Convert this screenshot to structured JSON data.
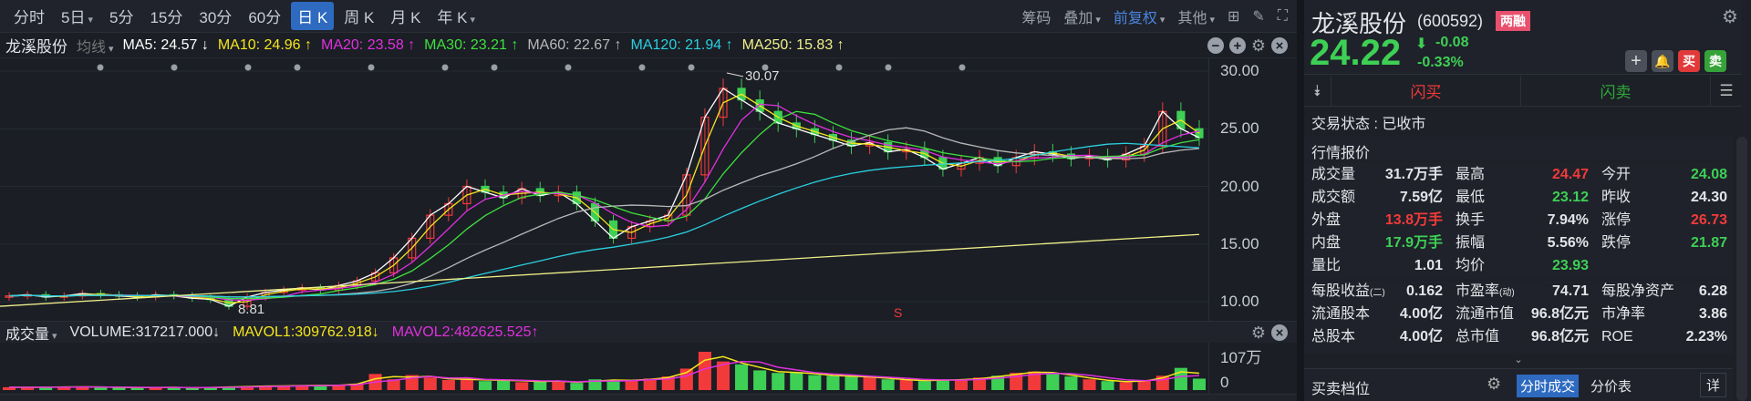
{
  "toolbar": {
    "periods": [
      {
        "label": "分时"
      },
      {
        "label": "5日",
        "dropdown": true
      },
      {
        "label": "5分"
      },
      {
        "label": "15分"
      },
      {
        "label": "30分"
      },
      {
        "label": "60分"
      },
      {
        "label": "日 K",
        "active": true
      },
      {
        "label": "周 K"
      },
      {
        "label": "月 K"
      },
      {
        "label": "年 K",
        "dropdown": true
      }
    ],
    "right": {
      "chips": "筹码",
      "overlay": "叠加",
      "adjust": "前复权",
      "other": "其他"
    }
  },
  "ma_bar": {
    "name": "龙溪股份",
    "type": "均线",
    "items": [
      {
        "label": "MA5: 24.57 ↓",
        "color": "#ffffff"
      },
      {
        "label": "MA10: 24.96 ↑",
        "color": "#f5e61c"
      },
      {
        "label": "MA20: 23.58 ↑",
        "color": "#e030e0"
      },
      {
        "label": "MA30: 23.21 ↑",
        "color": "#3ee03e"
      },
      {
        "label": "MA60: 22.67 ↑",
        "color": "#b8b8b8"
      },
      {
        "label": "MA120: 21.94 ↑",
        "color": "#2ad0e0"
      },
      {
        "label": "MA250: 15.83 ↑",
        "color": "#f0f08a"
      }
    ]
  },
  "volume_bar": {
    "name": "成交量",
    "items": [
      {
        "label": "VOLUME:317217.000↓",
        "color": "#e2e4e8"
      },
      {
        "label": "MAVOL1:309762.918↓",
        "color": "#f5e61c"
      },
      {
        "label": "MAVOL2:482625.525↑",
        "color": "#e030e0"
      }
    ]
  },
  "chart_data": {
    "type": "candlestick",
    "ylim": [
      10,
      30
    ],
    "y_ticks": [
      "30.00",
      "25.00",
      "20.00",
      "15.00",
      "10.00"
    ],
    "high_label": "30.07",
    "low_label": "8.81",
    "signal_marker": "S",
    "closes": [
      10.5,
      10.6,
      10.4,
      10.5,
      10.7,
      10.6,
      10.5,
      10.4,
      10.6,
      10.5,
      10.3,
      10.2,
      9.6,
      10.4,
      10.8,
      11.0,
      11.2,
      11.0,
      11.4,
      11.8,
      12.5,
      13.8,
      15.5,
      17.5,
      18.5,
      20.0,
      19.5,
      19.0,
      19.8,
      19.2,
      19.5,
      18.5,
      17.0,
      15.5,
      16.5,
      17.0,
      17.5,
      21.0,
      26.0,
      28.5,
      27.5,
      26.5,
      25.5,
      25.0,
      24.5,
      24.0,
      23.5,
      23.8,
      23.0,
      23.2,
      22.5,
      21.5,
      22.0,
      22.5,
      21.8,
      22.5,
      23.0,
      22.8,
      22.4,
      22.6,
      22.3,
      22.8,
      23.5,
      26.5,
      25.0,
      24.22
    ],
    "volume": {
      "unit": "万",
      "max_label": "107万",
      "min_label": "0",
      "values": [
        8,
        7,
        9,
        8,
        10,
        7,
        8,
        6,
        8,
        7,
        6,
        8,
        9,
        10,
        12,
        11,
        14,
        12,
        15,
        18,
        45,
        30,
        42,
        35,
        28,
        32,
        25,
        30,
        22,
        26,
        24,
        20,
        30,
        26,
        28,
        32,
        38,
        60,
        107,
        80,
        72,
        55,
        48,
        50,
        42,
        40,
        38,
        36,
        30,
        28,
        25,
        30,
        28,
        35,
        40,
        48,
        52,
        46,
        38,
        30,
        25,
        22,
        28,
        40,
        62,
        32
      ]
    }
  },
  "quote": {
    "name": "龙溪股份",
    "code": "(600592)",
    "badge": "两融",
    "price": "24.22",
    "change": "-0.08",
    "change_pct": "-0.33%",
    "buy": "买",
    "sell": "卖",
    "flash_buy": "闪买",
    "flash_sell": "闪卖",
    "status": "交易状态 : 已收市",
    "section": "行情报价",
    "rows": [
      [
        {
          "l": "成交量",
          "v": "31.7万手",
          "c": "white"
        },
        {
          "l": "最高",
          "v": "24.47",
          "c": "red"
        },
        {
          "l": "今开",
          "v": "24.08",
          "c": "green"
        }
      ],
      [
        {
          "l": "成交额",
          "v": "7.59亿",
          "c": "white"
        },
        {
          "l": "最低",
          "v": "23.12",
          "c": "green"
        },
        {
          "l": "昨收",
          "v": "24.30",
          "c": "white"
        }
      ],
      [
        {
          "l": "外盘",
          "v": "13.8万手",
          "c": "red"
        },
        {
          "l": "换手",
          "v": "7.94%",
          "c": "white"
        },
        {
          "l": "涨停",
          "v": "26.73",
          "c": "red"
        }
      ],
      [
        {
          "l": "内盘",
          "v": "17.9万手",
          "c": "green"
        },
        {
          "l": "振幅",
          "v": "5.56%",
          "c": "white"
        },
        {
          "l": "跌停",
          "v": "21.87",
          "c": "green"
        }
      ],
      [
        {
          "l": "量比",
          "v": "1.01",
          "c": "white"
        },
        {
          "l": "均价",
          "v": "23.93",
          "c": "green"
        },
        {
          "l": "",
          "v": "",
          "c": "white"
        }
      ]
    ],
    "rows2": [
      [
        {
          "l": "每股收益",
          "sub": "(二)",
          "v": "0.162"
        },
        {
          "l": "市盈率",
          "sub": "(动)",
          "v": "74.71"
        },
        {
          "l": "每股净资产",
          "v": "6.28"
        }
      ],
      [
        {
          "l": "流通股本",
          "v": "4.00亿"
        },
        {
          "l": "流通市值",
          "v": "96.8亿元"
        },
        {
          "l": "市净率",
          "v": "3.86"
        }
      ],
      [
        {
          "l": "总股本",
          "v": "4.00亿"
        },
        {
          "l": "总市值",
          "v": "96.8亿元"
        },
        {
          "l": "ROE",
          "v": "2.23%"
        }
      ]
    ],
    "depth_title": "买卖档位",
    "tab_ticks": "分时成交",
    "tab_price": "分价表",
    "detail": "详"
  },
  "colors": {
    "up": "#f23a3a",
    "down": "#3ecf55",
    "accent": "#2d6ac0"
  }
}
